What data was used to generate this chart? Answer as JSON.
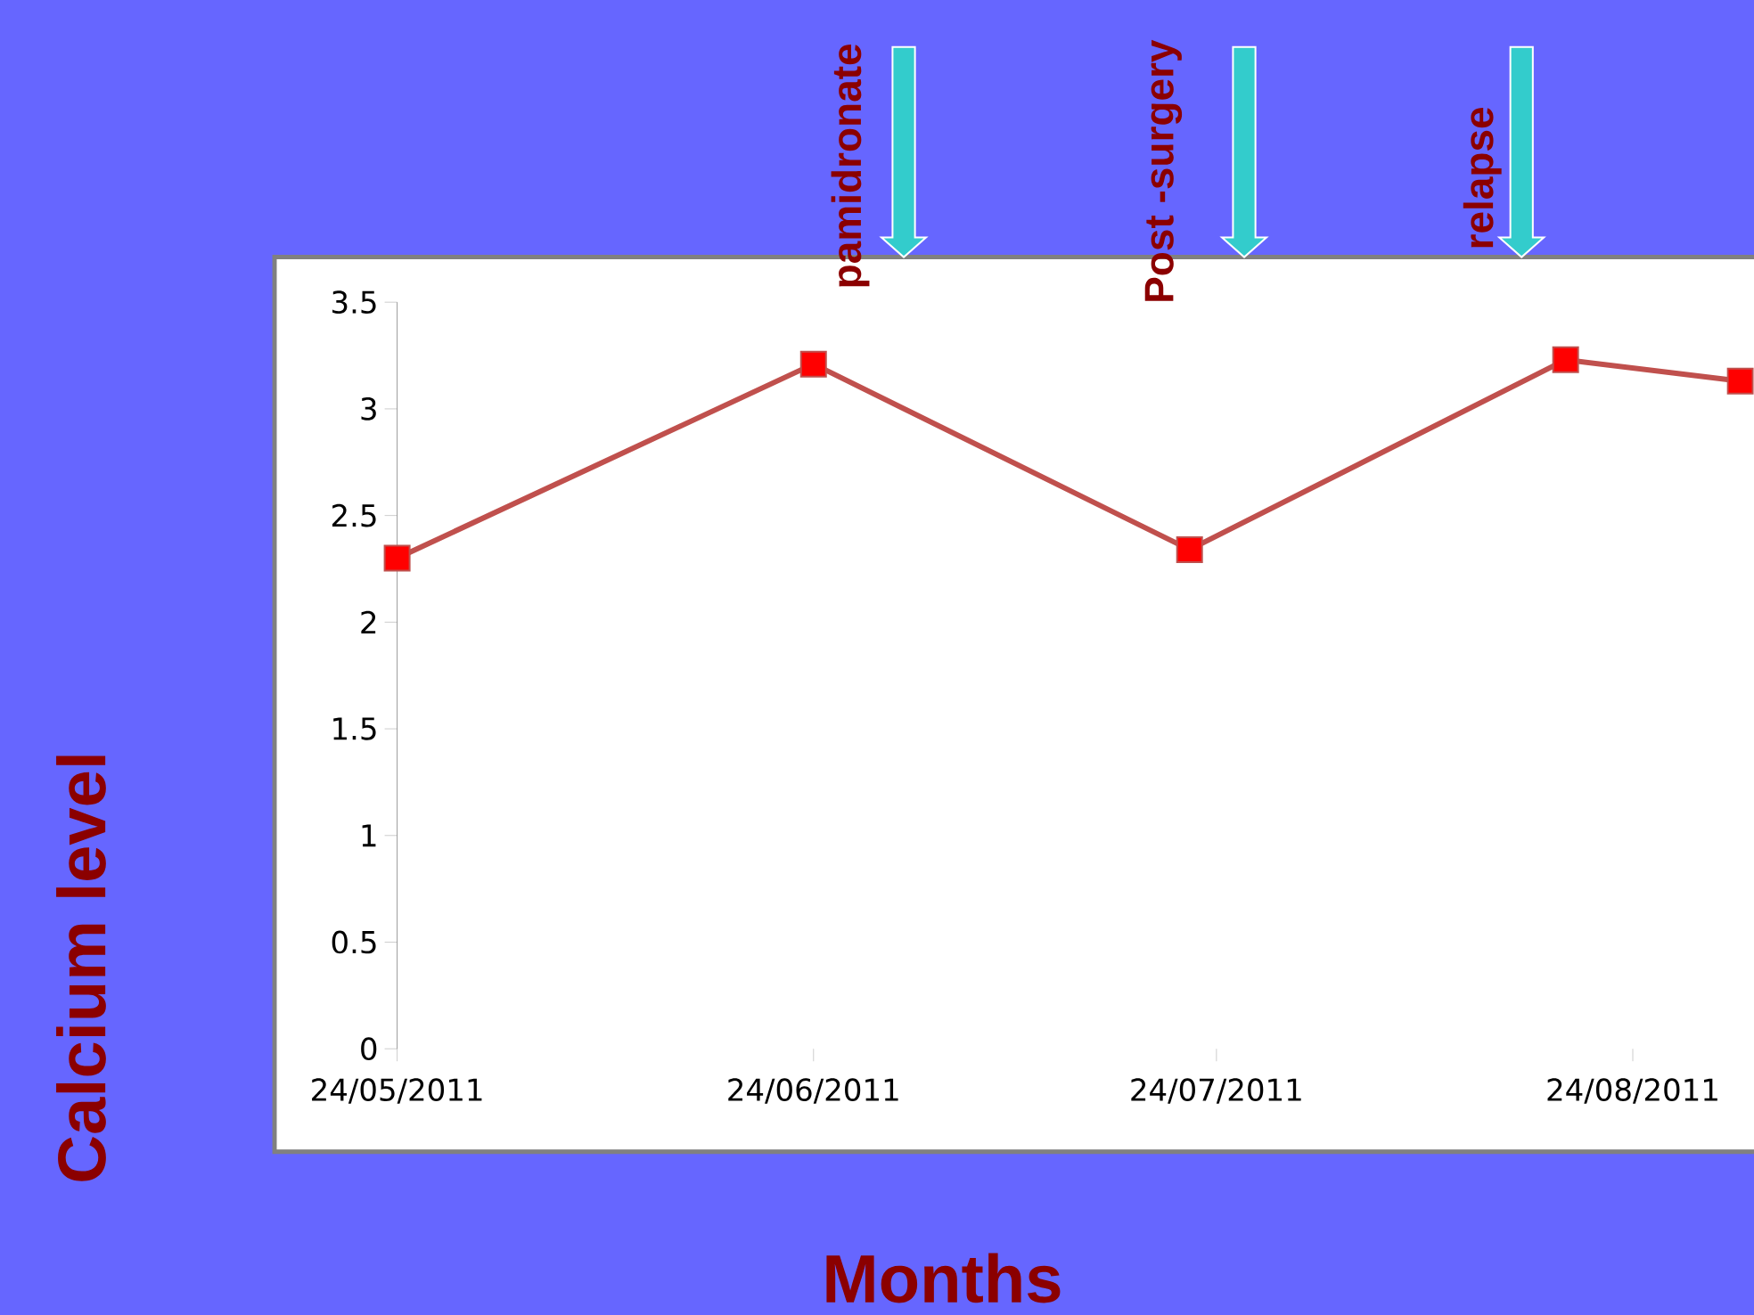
{
  "chart_data": {
    "type": "line",
    "xlabel": "Months",
    "ylabel": "Calcium level",
    "x": [
      "2011-05-24",
      "2011-06-24",
      "2011-07-22",
      "2011-08-19",
      "2011-09-01"
    ],
    "series": [
      {
        "color": "#C0504D",
        "colors": [
          "#FF0000",
          "#FF0000",
          "#FF0000",
          "#FF0000",
          "#FF0000"
        ],
        "values": [
          2.3,
          3.21,
          2.34,
          3.23,
          3.13
        ]
      }
    ],
    "xlim": [
      "2011-05-24",
      "2011-09-02"
    ],
    "xticks": [
      {
        "value": "2011-05-24",
        "label": "24/05/2011"
      },
      {
        "value": "2011-06-24",
        "label": "24/06/2011"
      },
      {
        "value": "2011-07-24",
        "label": "24/07/2011"
      },
      {
        "value": "2011-08-24",
        "label": "24/08/2011"
      }
    ],
    "ylim": [
      0,
      3.5
    ],
    "yticks": [
      0,
      0.5,
      1,
      1.5,
      2,
      2.5,
      3,
      3.5
    ],
    "annotations": [
      "pamidronate",
      "Post -surgery",
      "relapse"
    ],
    "grid": false,
    "marker": "square",
    "line_style": "solid"
  }
}
